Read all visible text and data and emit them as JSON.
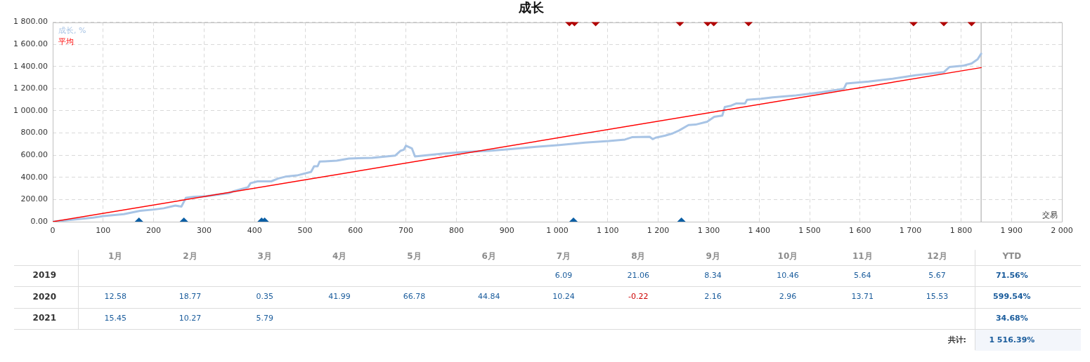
{
  "chart_data": [
    {
      "type": "line",
      "title": "成长",
      "xlabel": "交易",
      "series": [
        {
          "name": "成长, %",
          "color": "#a8c4e5",
          "x": [
            0,
            80,
            100,
            141,
            173,
            201,
            220,
            243,
            255,
            264,
            280,
            303,
            350,
            359,
            387,
            392,
            406,
            433,
            447,
            461,
            484,
            512,
            518,
            525,
            529,
            540,
            563,
            587,
            633,
            679,
            689,
            696,
            700,
            712,
            718,
            735,
            772,
            819,
            865,
            912,
            958,
            1004,
            1055,
            1102,
            1134,
            1148,
            1183,
            1189,
            1195,
            1214,
            1227,
            1241,
            1260,
            1274,
            1297,
            1311,
            1327,
            1332,
            1344,
            1355,
            1372,
            1376,
            1404,
            1427,
            1473,
            1524,
            1568,
            1573,
            1617,
            1664,
            1710,
            1766,
            1777,
            1803,
            1821,
            1833,
            1840
          ],
          "values": [
            0,
            36,
            51,
            68,
            98,
            110,
            121,
            146,
            136,
            216,
            225,
            229,
            258,
            276,
            311,
            347,
            364,
            364,
            390,
            406,
            417,
            449,
            500,
            500,
            542,
            544,
            550,
            570,
            576,
            597,
            639,
            650,
            686,
            660,
            589,
            597,
            614,
            629,
            639,
            656,
            676,
            692,
            714,
            728,
            741,
            762,
            766,
            745,
            758,
            777,
            794,
            822,
            872,
            876,
            902,
            946,
            957,
            1035,
            1046,
            1067,
            1067,
            1099,
            1109,
            1122,
            1139,
            1168,
            1200,
            1247,
            1264,
            1289,
            1321,
            1349,
            1395,
            1406,
            1427,
            1465,
            1515
          ]
        },
        {
          "name": "平均",
          "type": "line",
          "color": "#ff0000",
          "x": [
            0,
            1840
          ],
          "values": [
            0,
            1390
          ]
        },
        {
          "type": "scatter",
          "marker": "diamond",
          "color": "#b00000",
          "x": [
            1024,
            1034,
            1076,
            1243,
            1298,
            1310,
            1379,
            1706,
            1766,
            1821
          ],
          "values": [
            1800,
            1800,
            1800,
            1800,
            1800,
            1800,
            1800,
            1800,
            1800,
            1800
          ]
        },
        {
          "type": "scatter",
          "marker": "diamond",
          "color": "#0b5fa5",
          "x": [
            171,
            260,
            414,
            420,
            1032,
            1246
          ],
          "values": [
            0,
            0,
            0,
            0,
            0,
            0
          ]
        }
      ],
      "xlim": [
        0,
        2000
      ],
      "xticks": [
        0,
        100,
        200,
        300,
        400,
        500,
        600,
        700,
        800,
        900,
        {
          "value": 1000,
          "label": "1 000"
        },
        {
          "value": 1100,
          "label": "1 100"
        },
        {
          "value": 1200,
          "label": "1 200"
        },
        {
          "value": 1300,
          "label": "1 300"
        },
        {
          "value": 1400,
          "label": "1 400"
        },
        {
          "value": 1500,
          "label": "1 500"
        },
        {
          "value": 1600,
          "label": "1 600"
        },
        {
          "value": 1700,
          "label": "1 700"
        },
        {
          "value": 1800,
          "label": "1 800"
        },
        {
          "value": 1900,
          "label": "1 900"
        },
        {
          "value": 2000,
          "label": "2 000"
        }
      ],
      "ylim": [
        0,
        1800
      ],
      "yticks": [
        {
          "value": 0,
          "label": "0.00"
        },
        {
          "value": 200,
          "label": "200.00"
        },
        {
          "value": 400,
          "label": "400.00"
        },
        {
          "value": 600,
          "label": "600.00"
        },
        {
          "value": 800,
          "label": "800.00"
        },
        {
          "value": 1000,
          "label": "1 000.00"
        },
        {
          "value": 1200,
          "label": "1 200.00"
        },
        {
          "value": 1400,
          "label": "1 400.00"
        },
        {
          "value": 1600,
          "label": "1 600.00"
        },
        {
          "value": 1800,
          "label": "1 800.00"
        }
      ],
      "grid": true,
      "legend": "top left",
      "ref_lines": [
        {
          "axis": "x",
          "value": 1840,
          "color": "#c0c0c0"
        }
      ]
    },
    {
      "type": "heatmap",
      "categories": [
        "1月",
        "2月",
        "3月",
        "4月",
        "5月",
        "6月",
        "7月",
        "8月",
        "9月",
        "10月",
        "11月",
        "12月",
        "YTD"
      ],
      "y_categories": [
        "2019",
        "2020",
        "2021"
      ],
      "cells": [
        [
          null,
          null,
          null,
          null,
          null,
          null,
          6.09,
          21.06,
          8.34,
          10.46,
          5.64,
          5.67,
          71.56
        ],
        [
          12.58,
          18.77,
          0.35,
          41.99,
          66.78,
          44.84,
          10.24,
          -0.22,
          2.16,
          2.96,
          13.71,
          15.53,
          599.54
        ],
        [
          15.45,
          10.27,
          5.79,
          null,
          null,
          null,
          null,
          null,
          null,
          null,
          null,
          null,
          34.68
        ]
      ],
      "cell_labels": [
        [
          null,
          null,
          null,
          null,
          null,
          null,
          "6.09",
          "21.06",
          "8.34",
          "10.46",
          "5.64",
          "5.67",
          "71.56%"
        ],
        [
          "12.58",
          "18.77",
          "0.35",
          "41.99",
          "66.78",
          "44.84",
          "10.24",
          "-0.22",
          "2.16",
          "2.96",
          "13.71",
          "15.53",
          "599.54%"
        ],
        [
          "15.45",
          "10.27",
          "5.79",
          null,
          null,
          null,
          null,
          null,
          null,
          null,
          null,
          null,
          "34.68%"
        ]
      ],
      "colors": [
        [
          null,
          null,
          null,
          null,
          null,
          null,
          "#1a5c9c",
          "#1a5c9c",
          "#1a5c9c",
          "#1a5c9c",
          "#1a5c9c",
          "#1a5c9c",
          "#1a5c9c"
        ],
        [
          "#1a5c9c",
          "#1a5c9c",
          "#1a5c9c",
          "#1a5c9c",
          "#1a5c9c",
          "#1a5c9c",
          "#1a5c9c",
          "#cc0000",
          "#1a5c9c",
          "#1a5c9c",
          "#1a5c9c",
          "#1a5c9c",
          "#1a5c9c"
        ],
        [
          "#1a5c9c",
          "#1a5c9c",
          "#1a5c9c",
          null,
          null,
          null,
          null,
          null,
          null,
          null,
          null,
          null,
          "#1a5c9c"
        ]
      ],
      "data_labels": true,
      "annotations": [
        "共计:",
        "1 516.39%"
      ]
    }
  ]
}
